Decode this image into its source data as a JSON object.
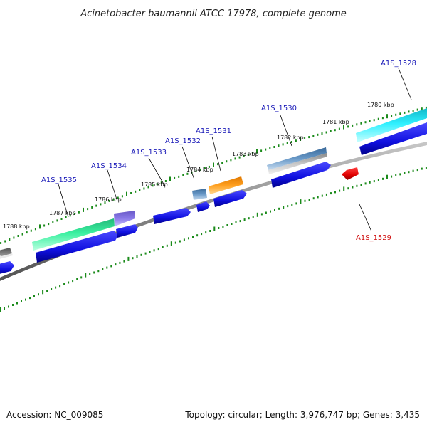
{
  "title": "Acinetobacter baumannii ATCC 17978, complete genome",
  "footer": {
    "accession": "Accession: NC_009085",
    "stats": "Topology: circular; Length: 3,976,747 bp; Genes: 3,435"
  },
  "kbp_labels": [
    "1780 kbp",
    "1781 kbp",
    "1782 kbp",
    "1783 kbp",
    "1784 kbp",
    "1785 kbp",
    "1786 kbp",
    "1787 kbp",
    "1788 kbp"
  ],
  "genes": [
    {
      "id": "A1S_1528",
      "strand": "forward"
    },
    {
      "id": "A1S_1529",
      "strand": "reverse"
    },
    {
      "id": "A1S_1530",
      "strand": "forward"
    },
    {
      "id": "A1S_1531",
      "strand": "forward"
    },
    {
      "id": "A1S_1532",
      "strand": "forward"
    },
    {
      "id": "A1S_1533",
      "strand": "forward"
    },
    {
      "id": "A1S_1534",
      "strand": "forward"
    },
    {
      "id": "A1S_1535",
      "strand": "forward"
    }
  ],
  "colors": {
    "tick": "#1a8a1a",
    "cds": "#1010e0",
    "reverse_feature": "#e01010",
    "backbone": "#888888",
    "gene_label": "#1a1ab8",
    "reverse_label": "#d01010"
  }
}
